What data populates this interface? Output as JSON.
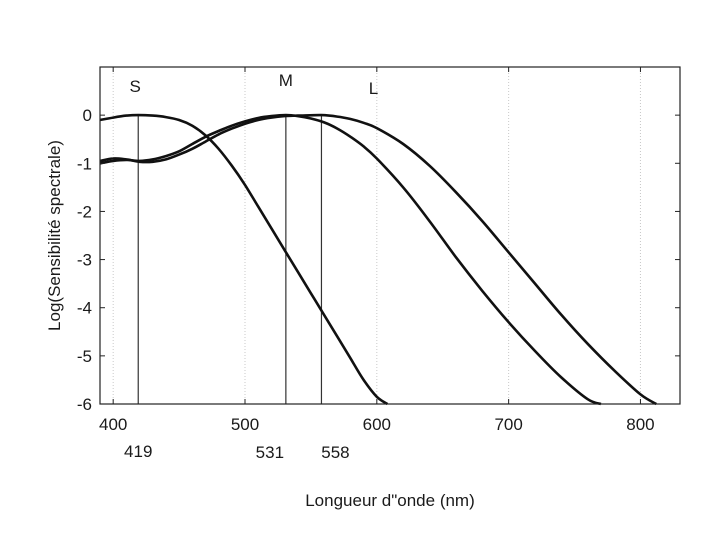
{
  "chart_data": {
    "type": "line",
    "title": "",
    "xlabel": "Longueur d\"onde (nm)",
    "ylabel": "Log(Sensibilité spectrale)",
    "xlim": [
      390,
      830
    ],
    "ylim": [
      -6,
      1
    ],
    "x_ticks": [
      400,
      500,
      600,
      700,
      800
    ],
    "y_ticks": [
      0,
      -1,
      -2,
      -3,
      -4,
      -5,
      -6
    ],
    "grid": "vertical dotted",
    "peaks": [
      {
        "label": "S",
        "wavelength": 419,
        "wavelength_label": "419"
      },
      {
        "label": "M",
        "wavelength": 531,
        "wavelength_label": "531"
      },
      {
        "label": "L",
        "wavelength": 558,
        "wavelength_label": "558"
      }
    ],
    "series": [
      {
        "x": [
          390,
          400,
          410,
          419,
          430,
          440,
          450,
          460,
          470,
          480,
          490,
          500,
          510,
          520,
          530,
          540,
          550,
          560,
          570,
          580,
          590,
          600,
          608
        ],
        "values": [
          -0.1,
          -0.05,
          -0.01,
          0,
          -0.01,
          -0.04,
          -0.1,
          -0.22,
          -0.42,
          -0.7,
          -1.05,
          -1.45,
          -1.9,
          -2.35,
          -2.8,
          -3.25,
          -3.7,
          -4.15,
          -4.6,
          -5.05,
          -5.5,
          -5.85,
          -6.0
        ]
      },
      {
        "x": [
          390,
          400,
          410,
          420,
          430,
          440,
          450,
          460,
          470,
          480,
          490,
          500,
          510,
          520,
          531,
          540,
          550,
          560,
          570,
          580,
          590,
          600,
          620,
          640,
          660,
          680,
          700,
          720,
          740,
          760,
          770
        ],
        "values": [
          -1.0,
          -0.95,
          -0.93,
          -0.95,
          -0.92,
          -0.85,
          -0.75,
          -0.6,
          -0.45,
          -0.33,
          -0.22,
          -0.13,
          -0.06,
          -0.02,
          0,
          -0.02,
          -0.07,
          -0.15,
          -0.28,
          -0.45,
          -0.65,
          -0.9,
          -1.5,
          -2.2,
          -2.95,
          -3.65,
          -4.3,
          -4.9,
          -5.45,
          -5.9,
          -6.0
        ]
      },
      {
        "x": [
          390,
          400,
          410,
          420,
          430,
          440,
          450,
          460,
          470,
          480,
          490,
          500,
          510,
          520,
          530,
          540,
          558,
          570,
          580,
          590,
          600,
          620,
          640,
          660,
          680,
          700,
          720,
          740,
          760,
          780,
          800,
          812
        ],
        "values": [
          -0.95,
          -0.9,
          -0.92,
          -0.97,
          -0.97,
          -0.92,
          -0.82,
          -0.7,
          -0.55,
          -0.4,
          -0.28,
          -0.18,
          -0.1,
          -0.05,
          -0.02,
          -0.01,
          0,
          -0.03,
          -0.08,
          -0.16,
          -0.27,
          -0.6,
          -1.05,
          -1.6,
          -2.2,
          -2.85,
          -3.5,
          -4.15,
          -4.75,
          -5.3,
          -5.8,
          -6.0
        ]
      }
    ]
  }
}
